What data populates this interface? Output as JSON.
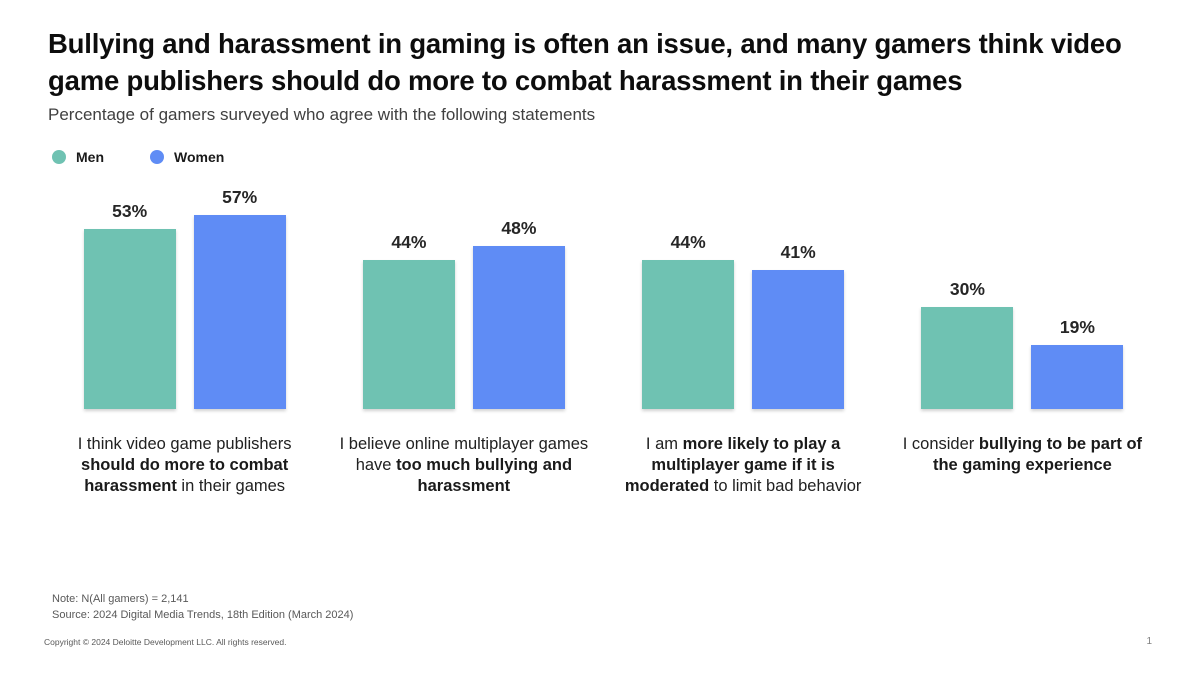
{
  "slide": {
    "title": "Bullying and harassment in gaming is often an issue, and many gamers think video game publishers should do more to combat harassment in their games",
    "subtitle": "Percentage of gamers surveyed who agree with the following statements",
    "note": "Note: N(All gamers) = 2,141",
    "source": "Source: 2024 Digital Media Trends, 18th Edition (March 2024)",
    "copyright": "Copyright © 2024 Deloitte Development LLC. All rights reserved.",
    "page_number": "1"
  },
  "legend": {
    "items": [
      {
        "label": "Men",
        "color": "#6FC2B2"
      },
      {
        "label": "Women",
        "color": "#5F8CF5"
      }
    ]
  },
  "chart_data": {
    "type": "bar",
    "unit": "%",
    "title": "Percentage of gamers surveyed who agree with the following statements",
    "value_labels": true,
    "axes_visible": false,
    "legend_position": "top-left",
    "ylim": [
      0,
      60
    ],
    "categories": [
      "I think video game publishers should do more to combat harassment in their games",
      "I believe online multiplayer games have too much bullying and harassment",
      "I am more likely to play a multiplayer game if it is moderated to limit bad behavior",
      "I consider bullying to be part of the gaming experience"
    ],
    "category_segments": [
      [
        {
          "text": "I think video game publishers ",
          "bold": false
        },
        {
          "text": "should do more to combat harassment",
          "bold": true
        },
        {
          "text": " in their games",
          "bold": false
        }
      ],
      [
        {
          "text": "I believe online multiplayer games have ",
          "bold": false
        },
        {
          "text": "too much bullying and harassment",
          "bold": true
        }
      ],
      [
        {
          "text": "I am ",
          "bold": false
        },
        {
          "text": "more likely to play a multiplayer game if it is moderated",
          "bold": true
        },
        {
          "text": " to limit bad behavior",
          "bold": false
        }
      ],
      [
        {
          "text": "I consider ",
          "bold": false
        },
        {
          "text": "bullying to be part of the gaming experience",
          "bold": true
        }
      ]
    ],
    "series": [
      {
        "name": "Men",
        "color": "#6FC2B2",
        "values": [
          53,
          44,
          44,
          30
        ]
      },
      {
        "name": "Women",
        "color": "#5F8CF5",
        "values": [
          57,
          48,
          41,
          19
        ]
      }
    ]
  }
}
